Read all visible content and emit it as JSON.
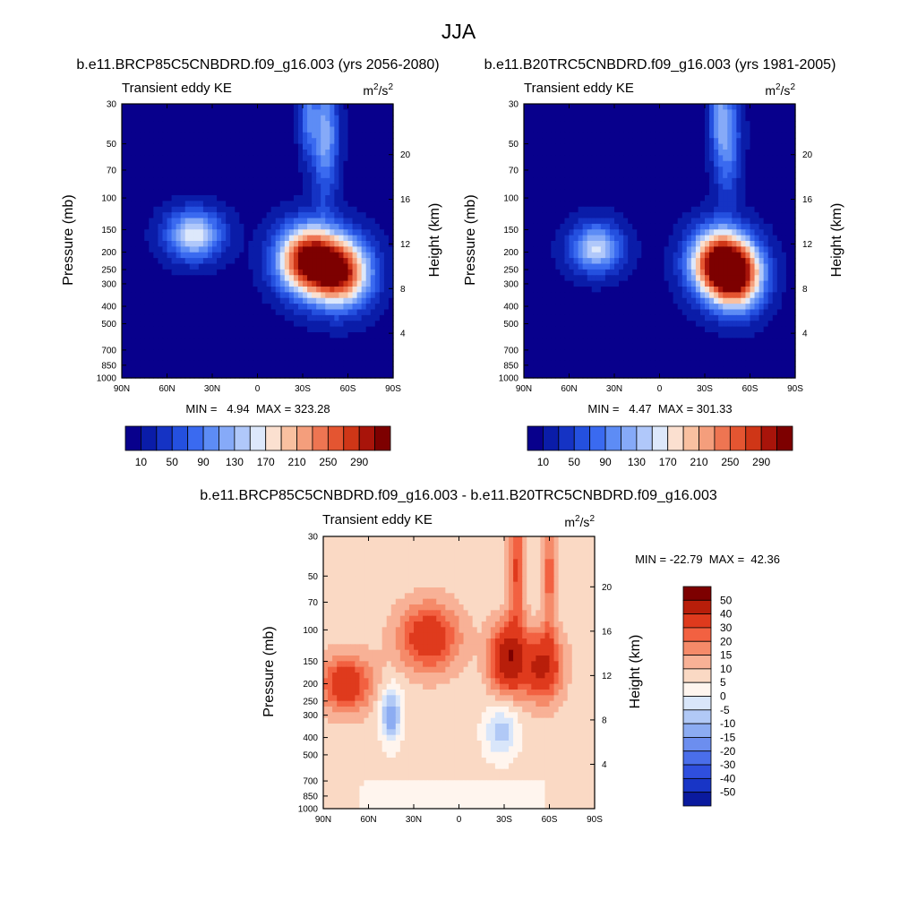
{
  "chart_data": {
    "type": "heatmap",
    "title": "JJA",
    "panels": [
      {
        "id": "a",
        "title": "b.e11.BRCP85C5CNBDRD.f09_g16.003 (yrs 2056-2080)",
        "left_label": "Transient eddy KE",
        "units_base": "m",
        "units_sup1": "2",
        "units_mid": "/s",
        "units_sup2": "2",
        "ylabel": "Pressure (mb)",
        "y2label": "Height (km)",
        "x_ticks": [
          "90N",
          "60N",
          "30N",
          "0",
          "30S",
          "60S",
          "90S"
        ],
        "p_ticks": [
          30,
          50,
          70,
          100,
          150,
          200,
          250,
          300,
          400,
          500,
          700,
          850,
          1000
        ],
        "h_ticks": [
          4,
          8,
          12,
          16,
          20
        ],
        "stats": "MIN =   4.94  MAX = 323.28",
        "colorbar_labels": [
          "10",
          "50",
          "90",
          "130",
          "170",
          "210",
          "250",
          "290"
        ],
        "features": [
          {
            "lat": 42,
            "p": 160,
            "v": 165,
            "sx": 13,
            "sy": 0.22
          },
          {
            "lat": -33,
            "p": 220,
            "v": 300,
            "sx": 14,
            "sy": 0.3
          },
          {
            "lat": -55,
            "p": 260,
            "v": 285,
            "sx": 14,
            "sy": 0.3
          },
          {
            "lat": -45,
            "p": 45,
            "v": 120,
            "sx": 6,
            "sy": 0.55
          },
          {
            "lat": -33,
            "p": 35,
            "v": 80,
            "sx": 4,
            "sy": 0.35
          }
        ]
      },
      {
        "id": "b",
        "title": "b.e11.B20TRC5CNBDRD.f09_g16.003 (yrs 1981-2005)",
        "left_label": "Transient eddy KE",
        "units_base": "m",
        "units_sup1": "2",
        "units_mid": "/s",
        "units_sup2": "2",
        "ylabel": "Pressure (mb)",
        "y2label": "Height (km)",
        "x_ticks": [
          "90N",
          "60N",
          "30N",
          "0",
          "30S",
          "60S",
          "90S"
        ],
        "p_ticks": [
          30,
          50,
          70,
          100,
          150,
          200,
          250,
          300,
          400,
          500,
          700,
          850,
          1000
        ],
        "h_ticks": [
          4,
          8,
          12,
          16,
          20
        ],
        "stats": "MIN =   4.47  MAX = 301.33",
        "colorbar_labels": [
          "10",
          "50",
          "90",
          "130",
          "170",
          "210",
          "250",
          "290"
        ],
        "features": [
          {
            "lat": 42,
            "p": 190,
            "v": 150,
            "sx": 12,
            "sy": 0.22
          },
          {
            "lat": -38,
            "p": 230,
            "v": 285,
            "sx": 13,
            "sy": 0.3
          },
          {
            "lat": -52,
            "p": 270,
            "v": 270,
            "sx": 12,
            "sy": 0.3
          },
          {
            "lat": -45,
            "p": 45,
            "v": 105,
            "sx": 6,
            "sy": 0.55
          },
          {
            "lat": -38,
            "p": 33,
            "v": 65,
            "sx": 4,
            "sy": 0.35
          }
        ]
      },
      {
        "id": "diff",
        "title": "b.e11.BRCP85C5CNBDRD.f09_g16.003 - b.e11.B20TRC5CNBDRD.f09_g16.003",
        "left_label": "Transient eddy KE",
        "units_base": "m",
        "units_sup1": "2",
        "units_mid": "/s",
        "units_sup2": "2",
        "ylabel": "Pressure (mb)",
        "y2label": "Height (km)",
        "x_ticks": [
          "90N",
          "60N",
          "30N",
          "0",
          "30S",
          "60S",
          "90S"
        ],
        "p_ticks": [
          30,
          50,
          70,
          100,
          150,
          200,
          250,
          300,
          400,
          500,
          700,
          850,
          1000
        ],
        "h_ticks": [
          4,
          8,
          12,
          16,
          20
        ],
        "stats": "MIN = -22.79  MAX =  42.36",
        "colorbar_labels": [
          "50",
          "40",
          "30",
          "20",
          "15",
          "10",
          "5",
          "0",
          "-5",
          "-10",
          "-15",
          "-20",
          "-30",
          "-40",
          "-50"
        ],
        "features": [
          {
            "lat": 75,
            "p": 200,
            "v": 25,
            "sx": 12,
            "sy": 0.25
          },
          {
            "lat": 20,
            "p": 110,
            "v": 25,
            "sx": 14,
            "sy": 0.3
          },
          {
            "lat": -32,
            "p": 145,
            "v": 35,
            "sx": 8,
            "sy": 0.3
          },
          {
            "lat": -55,
            "p": 160,
            "v": 30,
            "sx": 9,
            "sy": 0.3
          },
          {
            "lat": -38,
            "p": 45,
            "v": 18,
            "sx": 4,
            "sy": 0.7
          },
          {
            "lat": -60,
            "p": 50,
            "v": 15,
            "sx": 3,
            "sy": 0.6
          },
          {
            "lat": 45,
            "p": 300,
            "v": -22,
            "sx": 5,
            "sy": 0.25
          },
          {
            "lat": -28,
            "p": 370,
            "v": -15,
            "sx": 8,
            "sy": 0.25
          }
        ]
      }
    ]
  },
  "colors": {
    "kebar": [
      "#08008c",
      "#0a1ca8",
      "#1533c4",
      "#2450df",
      "#3a6af0",
      "#5d8cf5",
      "#86aaf8",
      "#b0c8fa",
      "#dde8fb",
      "#fbe0d0",
      "#f9c0a0",
      "#f49e7c",
      "#ee7552",
      "#e45531",
      "#cf3617",
      "#a8140a",
      "#7d0000"
    ],
    "diffbar": [
      "#7d0000",
      "#b81e0a",
      "#df3a1d",
      "#f26141",
      "#f58a69",
      "#f8b196",
      "#fad9c4",
      "#fff5ee",
      "#d9e6fa",
      "#b1c9f6",
      "#8cacf2",
      "#6c8eef",
      "#4a6eea",
      "#2f4fde",
      "#1835c6",
      "#0a1a9e"
    ]
  }
}
